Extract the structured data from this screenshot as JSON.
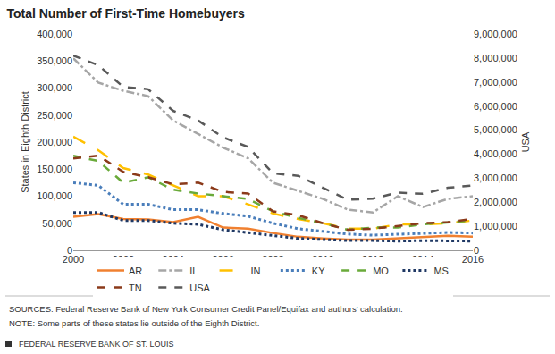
{
  "chart_data": {
    "type": "line",
    "title": "Total Number of First-Time Homebuyers",
    "y_label": "States in Eighth District",
    "y2_label": "USA",
    "sources": "SOURCES: Federal Reserve Bank of New York Consumer Credit Panel/Equifax and authors' calculation.",
    "note": "NOTE: Some parts of these states lie outside of the Eighth District.",
    "footer": "FEDERAL RESERVE BANK OF ST. LOUIS",
    "x": [
      2000,
      2001,
      2002,
      2003,
      2004,
      2005,
      2006,
      2007,
      2008,
      2009,
      2010,
      2011,
      2012,
      2013,
      2014,
      2015,
      2016
    ],
    "xlim": [
      2000,
      2016
    ],
    "xticks": [
      2000,
      2002,
      2004,
      2006,
      2008,
      2010,
      2012,
      2014,
      2016
    ],
    "ylim": [
      0,
      400000
    ],
    "yticks": [
      0,
      {
        "value": 50000,
        "label": "50,000"
      },
      {
        "value": 100000,
        "label": "100,000"
      },
      {
        "value": 150000,
        "label": "150,000"
      },
      {
        "value": 200000,
        "label": "200,000"
      },
      {
        "value": 250000,
        "label": "250,000"
      },
      {
        "value": 300000,
        "label": "300,000"
      },
      {
        "value": 350000,
        "label": "350,000"
      },
      {
        "value": 400000,
        "label": "400,000"
      }
    ],
    "y2lim": [
      0,
      9000000
    ],
    "y2ticks": [
      0,
      {
        "value": 1000000,
        "label": "1,000,000"
      },
      {
        "value": 2000000,
        "label": "2,000,000"
      },
      {
        "value": 3000000,
        "label": "3,000,000"
      },
      {
        "value": 4000000,
        "label": "4,000,000"
      },
      {
        "value": 5000000,
        "label": "5,000,000"
      },
      {
        "value": 6000000,
        "label": "6,000,000"
      },
      {
        "value": 7000000,
        "label": "7,000,000"
      },
      {
        "value": 8000000,
        "label": "8,000,000"
      },
      {
        "value": 9000000,
        "label": "9,000,000"
      }
    ],
    "grid": false,
    "legend": "bottom",
    "series": [
      {
        "name": "AR",
        "color": "#f08030",
        "line_style": "solid",
        "values": [
          62000,
          67000,
          58000,
          57000,
          52000,
          62000,
          42000,
          40000,
          32000,
          25000,
          22000,
          20000,
          20000,
          22000,
          25000,
          27000,
          25000
        ]
      },
      {
        "name": "IL",
        "color": "#a6a6a6",
        "line_style": "dashdot",
        "values": [
          355000,
          310000,
          295000,
          285000,
          240000,
          215000,
          190000,
          170000,
          125000,
          110000,
          95000,
          75000,
          70000,
          100000,
          80000,
          95000,
          100000
        ]
      },
      {
        "name": "IN",
        "color": "#ffc000",
        "line_style": "longdash",
        "values": [
          210000,
          185000,
          152000,
          140000,
          120000,
          100000,
          100000,
          85000,
          68000,
          58000,
          50000,
          40000,
          40000,
          48000,
          48000,
          50000,
          55000
        ]
      },
      {
        "name": "KY",
        "color": "#4a7ebb",
        "line_style": "dot",
        "values": [
          125000,
          120000,
          85000,
          85000,
          75000,
          75000,
          68000,
          63000,
          50000,
          40000,
          35000,
          30000,
          28000,
          30000,
          32000,
          33000,
          32000
        ]
      },
      {
        "name": "MO",
        "color": "#6aaa3a",
        "line_style": "dash",
        "values": [
          175000,
          165000,
          125000,
          135000,
          112000,
          105000,
          100000,
          95000,
          72000,
          60000,
          50000,
          38000,
          42000,
          42000,
          48000,
          52000,
          55000
        ]
      },
      {
        "name": "MS",
        "color": "#1f3864",
        "line_style": "dot",
        "values": [
          70000,
          70000,
          55000,
          55000,
          50000,
          48000,
          38000,
          33000,
          28000,
          22000,
          20000,
          18000,
          18000,
          17000,
          18000,
          18000,
          17000
        ]
      },
      {
        "name": "TN",
        "color": "#8b3a1a",
        "line_style": "dash",
        "values": [
          170000,
          175000,
          145000,
          135000,
          122000,
          125000,
          108000,
          105000,
          72000,
          65000,
          50000,
          38000,
          40000,
          45000,
          50000,
          52000,
          58000
        ]
      },
      {
        "name": "USA",
        "color": "#595959",
        "line_style": "dash",
        "axis": "y2",
        "values": [
          8100000,
          7700000,
          6800000,
          6700000,
          5800000,
          5400000,
          4700000,
          4300000,
          3200000,
          3100000,
          2600000,
          2100000,
          2150000,
          2400000,
          2350000,
          2600000,
          2700000
        ]
      }
    ]
  }
}
